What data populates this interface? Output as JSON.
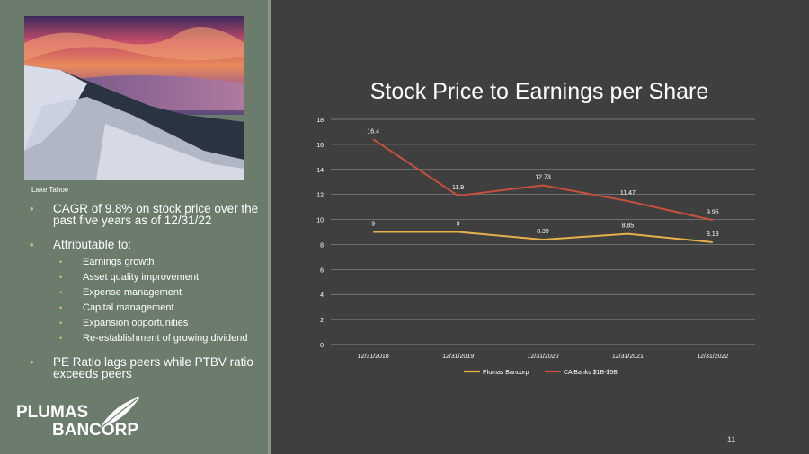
{
  "left_panel": {
    "photo_caption": "Lake Tahoe",
    "bullets": [
      {
        "text": "CAGR of 9.8% on stock price over the past five years as of 12/31/22"
      },
      {
        "text": "Attributable to:",
        "subitems": [
          "Earnings growth",
          "Asset quality improvement",
          "Expense management",
          "Capital management",
          "Expansion opportunities",
          "Re-establishment of growing dividend"
        ]
      },
      {
        "text": "PE Ratio lags peers while PTBV ratio exceeds peers"
      }
    ],
    "logo_line1": "PLUMAS",
    "logo_line2": "BANCORP"
  },
  "page_number": "11",
  "colors": {
    "plumas": "#e8b04a",
    "ca_banks": "#c8503c",
    "grid": "#8a8a8a"
  },
  "chart_data": {
    "type": "line",
    "title": "Stock Price to Earnings per Share",
    "categories": [
      "12/31/2018",
      "12/31/2019",
      "12/31/2020",
      "12/31/2021",
      "12/31/2022"
    ],
    "series": [
      {
        "name": "Plumas Bancorp",
        "values": [
          9,
          9,
          8.39,
          8.85,
          8.18
        ],
        "labels": [
          "9",
          "9",
          "8.39",
          "8.85",
          "8.18"
        ]
      },
      {
        "name": "CA Banks $1B-$5B",
        "values": [
          16.4,
          11.9,
          12.73,
          11.47,
          9.95
        ],
        "labels": [
          "16.4",
          "11.9",
          "12.73",
          "11.47",
          "9.95"
        ]
      }
    ],
    "ylim": [
      0,
      18
    ],
    "yticks": [
      "0",
      "2",
      "4",
      "6",
      "8",
      "10",
      "12",
      "14",
      "16",
      "18"
    ],
    "legend_position": "bottom",
    "grid": true
  }
}
